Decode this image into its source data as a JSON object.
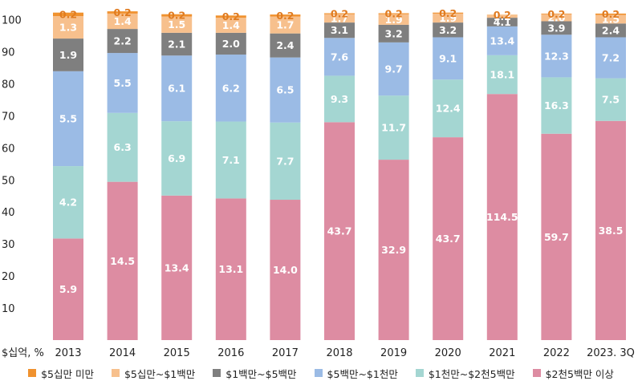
{
  "chart_data": {
    "type": "bar",
    "stacked": "percent",
    "ylabel": "$십억, %",
    "ylim": [
      0,
      100
    ],
    "yticks": [
      10,
      20,
      30,
      40,
      50,
      60,
      70,
      80,
      90,
      100
    ],
    "grid": false,
    "legend_position": "bottom",
    "categories": [
      "2013",
      "2014",
      "2015",
      "2016",
      "2017",
      "2018",
      "2019",
      "2020",
      "2021",
      "2022",
      "2023. 3Q"
    ],
    "series": [
      {
        "name": "$2천5백만 이상",
        "color": "#dd8ca2",
        "label_color": "#ffffff",
        "values": [
          5.9,
          14.5,
          13.4,
          13.1,
          14.0,
          43.7,
          32.9,
          43.7,
          114.5,
          59.7,
          38.5
        ],
        "shares": [
          31.7,
          49.4,
          45.1,
          44.2,
          43.8,
          68.0,
          56.3,
          63.3,
          76.8,
          64.4,
          68.4
        ]
      },
      {
        "name": "$1천만~$2천5백만",
        "color": "#a4d6d2",
        "label_color": "#ffffff",
        "values": [
          4.2,
          6.3,
          6.9,
          7.1,
          7.7,
          9.3,
          11.7,
          12.4,
          18.1,
          16.3,
          7.5
        ],
        "shares": [
          22.6,
          21.5,
          23.2,
          24.0,
          24.1,
          14.5,
          20.0,
          18.0,
          12.1,
          17.6,
          13.3
        ]
      },
      {
        "name": "$5백만~$1천만",
        "color": "#9bbbe5",
        "label_color": "#ffffff",
        "values": [
          5.5,
          5.5,
          6.1,
          6.2,
          6.5,
          7.6,
          9.7,
          9.1,
          13.4,
          12.3,
          7.2
        ],
        "shares": [
          29.6,
          18.7,
          20.5,
          20.9,
          20.3,
          11.8,
          16.6,
          13.2,
          9.0,
          13.3,
          12.8
        ]
      },
      {
        "name": "$1백만~$5백만",
        "color": "#7f7f7f",
        "label_color": "#ffffff",
        "values": [
          1.9,
          2.2,
          2.1,
          2.0,
          2.4,
          3.1,
          3.2,
          3.2,
          4.1,
          3.9,
          2.4
        ],
        "shares": [
          10.2,
          7.5,
          7.1,
          6.8,
          7.5,
          4.8,
          5.5,
          4.6,
          2.7,
          4.2,
          4.3
        ]
      },
      {
        "name": "$5십만~$1백만",
        "color": "#f7c08d",
        "label_color": "#ffffff",
        "values": [
          1.3,
          1.4,
          1.5,
          1.4,
          1.7,
          1.7,
          1.9,
          1.9,
          1.2,
          2.0,
          1.5
        ],
        "shares": [
          7.0,
          4.8,
          5.1,
          4.7,
          5.3,
          2.6,
          3.3,
          2.8,
          0.8,
          2.2,
          2.7
        ]
      },
      {
        "name": "$5십만 미만",
        "color": "#f0922f",
        "label_color": "#e07b20",
        "values": [
          0.2,
          0.2,
          0.2,
          0.2,
          0.2,
          0.2,
          0.2,
          0.2,
          0.2,
          0.2,
          0.2
        ],
        "shares": [
          1.1,
          0.7,
          0.7,
          0.7,
          0.6,
          0.3,
          0.3,
          0.3,
          0.1,
          0.2,
          0.4
        ]
      }
    ]
  }
}
